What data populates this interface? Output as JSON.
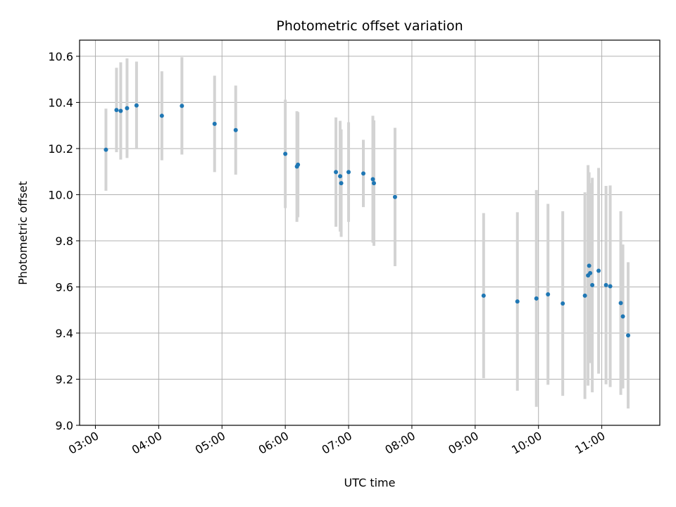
{
  "chart_data": {
    "type": "scatter",
    "title": "Photometric offset variation",
    "xlabel": "UTC time",
    "ylabel": "Photometric offset",
    "xlim": [
      "02:45",
      "11:55"
    ],
    "ylim": [
      9.0,
      10.67
    ],
    "x_ticks": [
      "03:00",
      "04:00",
      "05:00",
      "06:00",
      "07:00",
      "08:00",
      "09:00",
      "10:00",
      "11:00"
    ],
    "y_ticks": [
      "9.0",
      "9.2",
      "9.4",
      "9.6",
      "9.8",
      "10.0",
      "10.2",
      "10.4",
      "10.6"
    ],
    "grid": true,
    "marker_color": "#1f77b4",
    "errorbar_color": "#d3d3d3",
    "series": [
      {
        "points": [
          {
            "time": "03:10",
            "y": 10.195,
            "err": 0.178
          },
          {
            "time": "03:20",
            "y": 10.367,
            "err": 0.183
          },
          {
            "time": "03:24",
            "y": 10.363,
            "err": 0.211
          },
          {
            "time": "03:30",
            "y": 10.375,
            "err": 0.216
          },
          {
            "time": "03:39",
            "y": 10.387,
            "err": 0.19
          },
          {
            "time": "04:03",
            "y": 10.342,
            "err": 0.193
          },
          {
            "time": "04:22",
            "y": 10.385,
            "err": 0.211
          },
          {
            "time": "04:53",
            "y": 10.307,
            "err": 0.209
          },
          {
            "time": "05:13",
            "y": 10.28,
            "err": 0.193
          },
          {
            "time": "06:00",
            "y": 10.177,
            "err": 0.235
          },
          {
            "time": "06:11",
            "y": 10.122,
            "err": 0.24
          },
          {
            "time": "06:12",
            "y": 10.13,
            "err": 0.228
          },
          {
            "time": "06:48",
            "y": 10.098,
            "err": 0.237
          },
          {
            "time": "06:52",
            "y": 10.08,
            "err": 0.24
          },
          {
            "time": "06:53",
            "y": 10.05,
            "err": 0.233
          },
          {
            "time": "07:00",
            "y": 10.098,
            "err": 0.216
          },
          {
            "time": "07:14",
            "y": 10.092,
            "err": 0.146
          },
          {
            "time": "07:23",
            "y": 10.067,
            "err": 0.275
          },
          {
            "time": "07:24",
            "y": 10.05,
            "err": 0.272
          },
          {
            "time": "07:44",
            "y": 9.99,
            "err": 0.3
          },
          {
            "time": "09:08",
            "y": 9.562,
            "err": 0.358
          },
          {
            "time": "09:40",
            "y": 9.537,
            "err": 0.387
          },
          {
            "time": "09:58",
            "y": 9.55,
            "err": 0.47
          },
          {
            "time": "10:09",
            "y": 9.568,
            "err": 0.392
          },
          {
            "time": "10:23",
            "y": 9.528,
            "err": 0.4
          },
          {
            "time": "10:44",
            "y": 9.562,
            "err": 0.448
          },
          {
            "time": "10:47",
            "y": 9.65,
            "err": 0.478
          },
          {
            "time": "10:48",
            "y": 9.692,
            "err": 0.405
          },
          {
            "time": "10:49",
            "y": 9.66,
            "err": 0.39
          },
          {
            "time": "10:51",
            "y": 9.608,
            "err": 0.465
          },
          {
            "time": "10:57",
            "y": 9.67,
            "err": 0.446
          },
          {
            "time": "11:04",
            "y": 9.608,
            "err": 0.43
          },
          {
            "time": "11:08",
            "y": 9.603,
            "err": 0.437
          },
          {
            "time": "11:18",
            "y": 9.53,
            "err": 0.398
          },
          {
            "time": "11:20",
            "y": 9.472,
            "err": 0.312
          },
          {
            "time": "11:25",
            "y": 9.39,
            "err": 0.317
          }
        ]
      }
    ]
  }
}
